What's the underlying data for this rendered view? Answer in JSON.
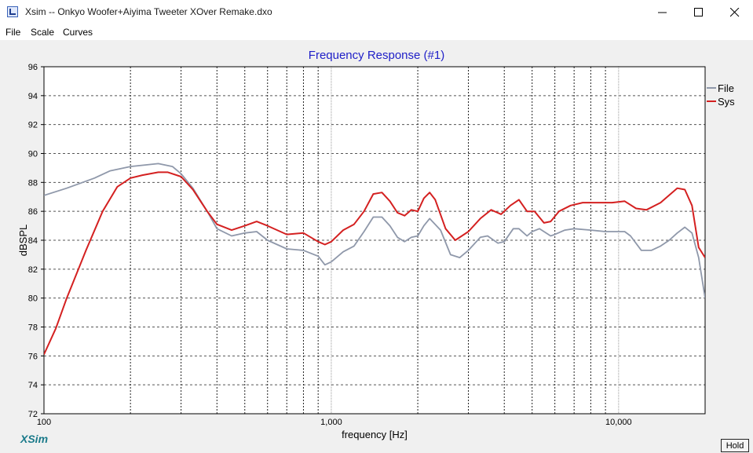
{
  "window": {
    "title": "Xsim -- Onkyo Woofer+Aiyima Tweeter XOver Remake.dxo"
  },
  "menu": {
    "items": [
      {
        "label": "File"
      },
      {
        "label": "Scale"
      },
      {
        "label": "Curves"
      }
    ]
  },
  "logo": "XSim",
  "hold_label": "Hold",
  "chart_data": {
    "type": "line",
    "title": "Frequency Response (#1)",
    "xlabel": "frequency [Hz]",
    "ylabel": "dBSPL",
    "xscale": "log",
    "xlim": [
      100,
      20000
    ],
    "ylim": [
      72,
      96
    ],
    "yticks": [
      72,
      74,
      76,
      78,
      80,
      82,
      84,
      86,
      88,
      90,
      92,
      94,
      96
    ],
    "xtick_labels": [
      {
        "value": 100,
        "label": "100"
      },
      {
        "value": 1000,
        "label": "1,000"
      },
      {
        "value": 10000,
        "label": "10,000"
      }
    ],
    "grid": true,
    "legend_position": "right",
    "series": [
      {
        "name": "File",
        "color": "#8f98aa",
        "x": [
          100,
          120,
          150,
          170,
          200,
          250,
          280,
          300,
          330,
          370,
          400,
          450,
          500,
          550,
          600,
          700,
          800,
          900,
          950,
          1000,
          1100,
          1200,
          1300,
          1400,
          1500,
          1600,
          1700,
          1800,
          1900,
          2000,
          2100,
          2200,
          2400,
          2600,
          2800,
          3000,
          3300,
          3500,
          3800,
          4000,
          4300,
          4500,
          4800,
          5000,
          5300,
          5500,
          5800,
          6000,
          6500,
          7000,
          8000,
          9000,
          10000,
          10500,
          11000,
          12000,
          13000,
          14000,
          15000,
          16000,
          17000,
          18000,
          19000,
          20000
        ],
        "values": [
          87.1,
          87.6,
          88.3,
          88.8,
          89.1,
          89.3,
          89.1,
          88.6,
          87.6,
          86.0,
          84.8,
          84.3,
          84.5,
          84.6,
          84.0,
          83.4,
          83.3,
          82.9,
          82.3,
          82.5,
          83.2,
          83.6,
          84.6,
          85.6,
          85.6,
          85.0,
          84.2,
          83.9,
          84.2,
          84.3,
          85.0,
          85.5,
          84.7,
          83.0,
          82.8,
          83.3,
          84.2,
          84.3,
          83.8,
          83.9,
          84.8,
          84.8,
          84.3,
          84.6,
          84.8,
          84.6,
          84.3,
          84.4,
          84.7,
          84.8,
          84.7,
          84.6,
          84.6,
          84.6,
          84.3,
          83.3,
          83.3,
          83.6,
          84.0,
          84.5,
          84.9,
          84.5,
          82.8,
          80.0
        ]
      },
      {
        "name": "Sys",
        "color": "#d42020",
        "x": [
          100,
          110,
          120,
          140,
          160,
          180,
          200,
          220,
          250,
          270,
          300,
          330,
          370,
          400,
          450,
          500,
          550,
          600,
          700,
          800,
          900,
          950,
          1000,
          1100,
          1200,
          1300,
          1400,
          1500,
          1600,
          1700,
          1800,
          1900,
          2000,
          2100,
          2200,
          2300,
          2500,
          2700,
          3000,
          3300,
          3600,
          3900,
          4200,
          4500,
          4800,
          5100,
          5500,
          5800,
          6200,
          6800,
          7500,
          8500,
          9500,
          10500,
          11500,
          12500,
          14000,
          16000,
          17000,
          18000,
          19000,
          20000
        ],
        "values": [
          76.1,
          77.9,
          80.0,
          83.3,
          86.0,
          87.7,
          88.3,
          88.5,
          88.7,
          88.7,
          88.4,
          87.5,
          86.0,
          85.1,
          84.7,
          85.0,
          85.3,
          85.0,
          84.4,
          84.5,
          83.9,
          83.7,
          83.9,
          84.7,
          85.1,
          86.0,
          87.2,
          87.3,
          86.7,
          85.9,
          85.7,
          86.1,
          86.0,
          86.9,
          87.3,
          86.8,
          84.8,
          84.0,
          84.6,
          85.5,
          86.1,
          85.8,
          86.4,
          86.8,
          86.0,
          86.0,
          85.2,
          85.3,
          86.0,
          86.4,
          86.6,
          86.6,
          86.6,
          86.7,
          86.2,
          86.1,
          86.6,
          87.6,
          87.5,
          86.4,
          83.5,
          82.8
        ]
      }
    ]
  }
}
